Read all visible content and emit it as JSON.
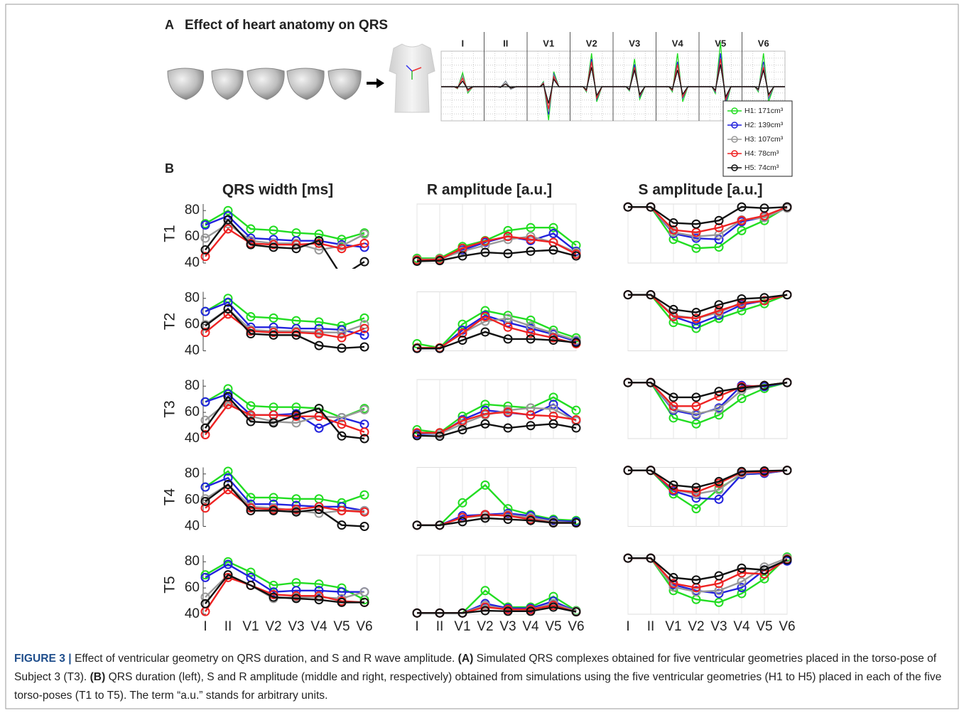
{
  "chart_data": [
    {
      "type": "ecg",
      "label": "A",
      "title": "Effect of heart anatomy on QRS",
      "categories": [
        "I",
        "II",
        "V1",
        "V2",
        "V3",
        "V4",
        "V5",
        "V6"
      ],
      "ylim": [
        -20,
        20
      ],
      "series": [
        {
          "name": "H1: 171cm³",
          "color": "#22dd22",
          "values": [
            5,
            2,
            -12,
            12,
            10,
            12,
            16,
            12
          ]
        },
        {
          "name": "H2: 139cm³",
          "color": "#2222dd",
          "values": [
            4,
            2,
            -10,
            10,
            8,
            9,
            12,
            9
          ]
        },
        {
          "name": "H3: 107cm³",
          "color": "#999999",
          "values": [
            4,
            2,
            -9,
            9,
            7,
            8,
            10,
            8
          ]
        },
        {
          "name": "H4: 78cm³",
          "color": "#ee2222",
          "values": [
            3,
            1,
            -8,
            9,
            7,
            8,
            10,
            7
          ]
        },
        {
          "name": "H5: 74cm³",
          "color": "#111111",
          "values": [
            2,
            1,
            -6,
            7,
            6,
            6,
            8,
            6
          ]
        }
      ]
    },
    {
      "type": "line_grid",
      "label": "B",
      "categories": [
        "I",
        "II",
        "V1",
        "V2",
        "V3",
        "V4",
        "V5",
        "V6"
      ],
      "rows": [
        "T1",
        "T2",
        "T3",
        "T4",
        "T5"
      ],
      "columns": [
        {
          "title": "QRS width [ms]",
          "ylim": [
            40,
            85
          ],
          "yticks": [
            40,
            60,
            80
          ],
          "grid": false
        },
        {
          "title": "R amplitude [a.u.]",
          "ylim": [
            0,
            100
          ],
          "grid": true
        },
        {
          "title": "S amplitude [a.u.]",
          "ylim": [
            0,
            100
          ],
          "grid": true
        }
      ],
      "panels": [
        [
          [
            [
              70,
              80,
              66,
              65,
              63,
              62,
              58,
              63
            ],
            [
              69,
              76,
              59,
              58,
              57,
              57,
              54,
              52
            ],
            [
              59,
              70,
              57,
              55,
              55,
              50,
              53,
              62
            ],
            [
              45,
              66,
              55,
              54,
              54,
              55,
              51,
              55
            ],
            [
              50,
              73,
              54,
              52,
              51,
              57,
              30,
              41
            ]
          ],
          [
            [
              8,
              8,
              28,
              38,
              55,
              60,
              60,
              30
            ],
            [
              5,
              6,
              22,
              35,
              45,
              38,
              50,
              20
            ],
            [
              6,
              7,
              20,
              30,
              40,
              45,
              35,
              18
            ],
            [
              5,
              6,
              25,
              37,
              45,
              40,
              35,
              15
            ],
            [
              3,
              4,
              12,
              18,
              16,
              20,
              22,
              12
            ]
          ],
          [
            [
              95,
              95,
              40,
              25,
              27,
              55,
              72,
              95
            ],
            [
              95,
              95,
              50,
              42,
              40,
              70,
              78,
              95
            ],
            [
              95,
              95,
              52,
              45,
              48,
              73,
              77,
              93
            ],
            [
              95,
              95,
              56,
              52,
              60,
              72,
              80,
              95
            ],
            [
              95,
              95,
              68,
              66,
              72,
              95,
              93,
              95
            ]
          ]
        ],
        [
          [
            [
              70,
              80,
              66,
              65,
              63,
              62,
              59,
              65
            ],
            [
              70,
              77,
              58,
              58,
              57,
              57,
              56,
              52
            ],
            [
              60,
              72,
              56,
              55,
              55,
              54,
              54,
              60
            ],
            [
              54,
              68,
              55,
              54,
              54,
              53,
              50,
              57
            ],
            [
              59,
              72,
              53,
              52,
              52,
              44,
              42,
              43
            ]
          ],
          [
            [
              12,
              5,
              45,
              68,
              60,
              52,
              35,
              22
            ],
            [
              4,
              4,
              35,
              60,
              48,
              38,
              28,
              16
            ],
            [
              5,
              5,
              30,
              50,
              55,
              42,
              30,
              18
            ],
            [
              5,
              5,
              30,
              58,
              40,
              30,
              22,
              12
            ],
            [
              4,
              4,
              18,
              32,
              20,
              20,
              18,
              14
            ]
          ],
          [
            [
              95,
              95,
              48,
              38,
              55,
              68,
              80,
              95
            ],
            [
              95,
              95,
              58,
              45,
              60,
              78,
              85,
              95
            ],
            [
              95,
              95,
              60,
              55,
              65,
              82,
              85,
              95
            ],
            [
              95,
              95,
              58,
              55,
              68,
              80,
              85,
              95
            ],
            [
              95,
              95,
              70,
              65,
              78,
              88,
              90,
              95
            ]
          ]
        ],
        [
          [
            [
              68,
              78,
              65,
              64,
              64,
              63,
              56,
              63
            ],
            [
              68,
              74,
              58,
              58,
              59,
              48,
              56,
              51
            ],
            [
              54,
              68,
              57,
              53,
              52,
              57,
              56,
              62
            ],
            [
              43,
              66,
              58,
              58,
              57,
              57,
              51,
              45
            ],
            [
              48,
              72,
              53,
              52,
              58,
              63,
              42,
              40
            ]
          ],
          [
            [
              15,
              10,
              38,
              58,
              55,
              52,
              70,
              48
            ],
            [
              8,
              8,
              32,
              48,
              44,
              40,
              58,
              30
            ],
            [
              10,
              8,
              25,
              40,
              48,
              52,
              50,
              30
            ],
            [
              10,
              10,
              30,
              42,
              45,
              40,
              38,
              32
            ],
            [
              5,
              4,
              15,
              25,
              18,
              22,
              25,
              18
            ]
          ],
          [
            [
              95,
              95,
              35,
              25,
              40,
              68,
              85,
              95
            ],
            [
              95,
              95,
              48,
              40,
              52,
              90,
              88,
              95
            ],
            [
              95,
              95,
              50,
              42,
              50,
              82,
              90,
              95
            ],
            [
              95,
              95,
              55,
              55,
              72,
              88,
              90,
              95
            ],
            [
              95,
              95,
              70,
              70,
              80,
              86,
              90,
              95
            ]
          ]
        ],
        [
          [
            [
              70,
              82,
              62,
              62,
              61,
              61,
              58,
              64
            ],
            [
              70,
              77,
              57,
              57,
              56,
              55,
              55,
              52
            ],
            [
              61,
              72,
              55,
              54,
              52,
              50,
              52,
              52
            ],
            [
              54,
              68,
              54,
              53,
              53,
              55,
              52,
              51
            ],
            [
              59,
              72,
              52,
              52,
              51,
              53,
              41,
              40
            ]
          ],
          [
            [
              2,
              2,
              40,
              70,
              30,
              20,
              12,
              10
            ],
            [
              2,
              2,
              18,
              20,
              22,
              18,
              10,
              8
            ],
            [
              2,
              2,
              15,
              18,
              20,
              15,
              8,
              6
            ],
            [
              2,
              2,
              15,
              20,
              18,
              12,
              6,
              6
            ],
            [
              2,
              2,
              8,
              14,
              12,
              10,
              6,
              6
            ]
          ],
          [
            [
              95,
              95,
              55,
              30,
              64,
              88,
              90,
              95
            ],
            [
              95,
              95,
              60,
              48,
              46,
              88,
              90,
              95
            ],
            [
              95,
              95,
              62,
              55,
              62,
              90,
              92,
              95
            ],
            [
              95,
              95,
              62,
              58,
              73,
              92,
              92,
              95
            ],
            [
              95,
              95,
              70,
              66,
              76,
              93,
              94,
              95
            ]
          ]
        ],
        [
          [
            [
              70,
              80,
              72,
              62,
              64,
              63,
              60,
              51
            ],
            [
              68,
              78,
              68,
              57,
              58,
              58,
              57,
              57
            ],
            [
              53,
              70,
              62,
              52,
              53,
              53,
              52,
              57
            ],
            [
              42,
              68,
              62,
              55,
              54,
              54,
              50,
              49
            ],
            [
              48,
              70,
              62,
              53,
              52,
              51,
              49,
              49
            ]
          ],
          [
            [
              2,
              2,
              2,
              40,
              12,
              12,
              30,
              6
            ],
            [
              2,
              2,
              2,
              18,
              10,
              10,
              22,
              5
            ],
            [
              2,
              2,
              2,
              15,
              8,
              8,
              18,
              5
            ],
            [
              2,
              2,
              2,
              12,
              8,
              8,
              15,
              4
            ],
            [
              2,
              2,
              2,
              6,
              5,
              5,
              12,
              4
            ]
          ],
          [
            [
              95,
              95,
              40,
              25,
              20,
              35,
              60,
              97
            ],
            [
              95,
              95,
              50,
              40,
              35,
              45,
              75,
              90
            ],
            [
              95,
              95,
              46,
              38,
              40,
              55,
              80,
              95
            ],
            [
              95,
              95,
              52,
              45,
              52,
              70,
              68,
              93
            ],
            [
              95,
              95,
              62,
              58,
              65,
              78,
              75,
              92
            ]
          ]
        ]
      ]
    }
  ],
  "caption": [
    {
      "text": "FIGURE 3 | ",
      "bold": true
    },
    {
      "text": "Effect of ventricular geometry on QRS duration, and S and R wave amplitude. ",
      "bold": false
    },
    {
      "text": "(A)",
      "bold": true
    },
    {
      "text": " Simulated QRS complexes obtained for five ventricular geometries placed in the torso-pose of Subject 3 (T3). ",
      "bold": false
    },
    {
      "text": "(B)",
      "bold": true
    },
    {
      "text": " QRS duration (left), S and R amplitude (middle and right, respectively) obtained from simulations using the five ventricular geometries (H1 to H5) placed in each of the five torso-poses (T1 to T5). The term “a.u.” stands for arbitrary units.",
      "bold": false
    }
  ]
}
